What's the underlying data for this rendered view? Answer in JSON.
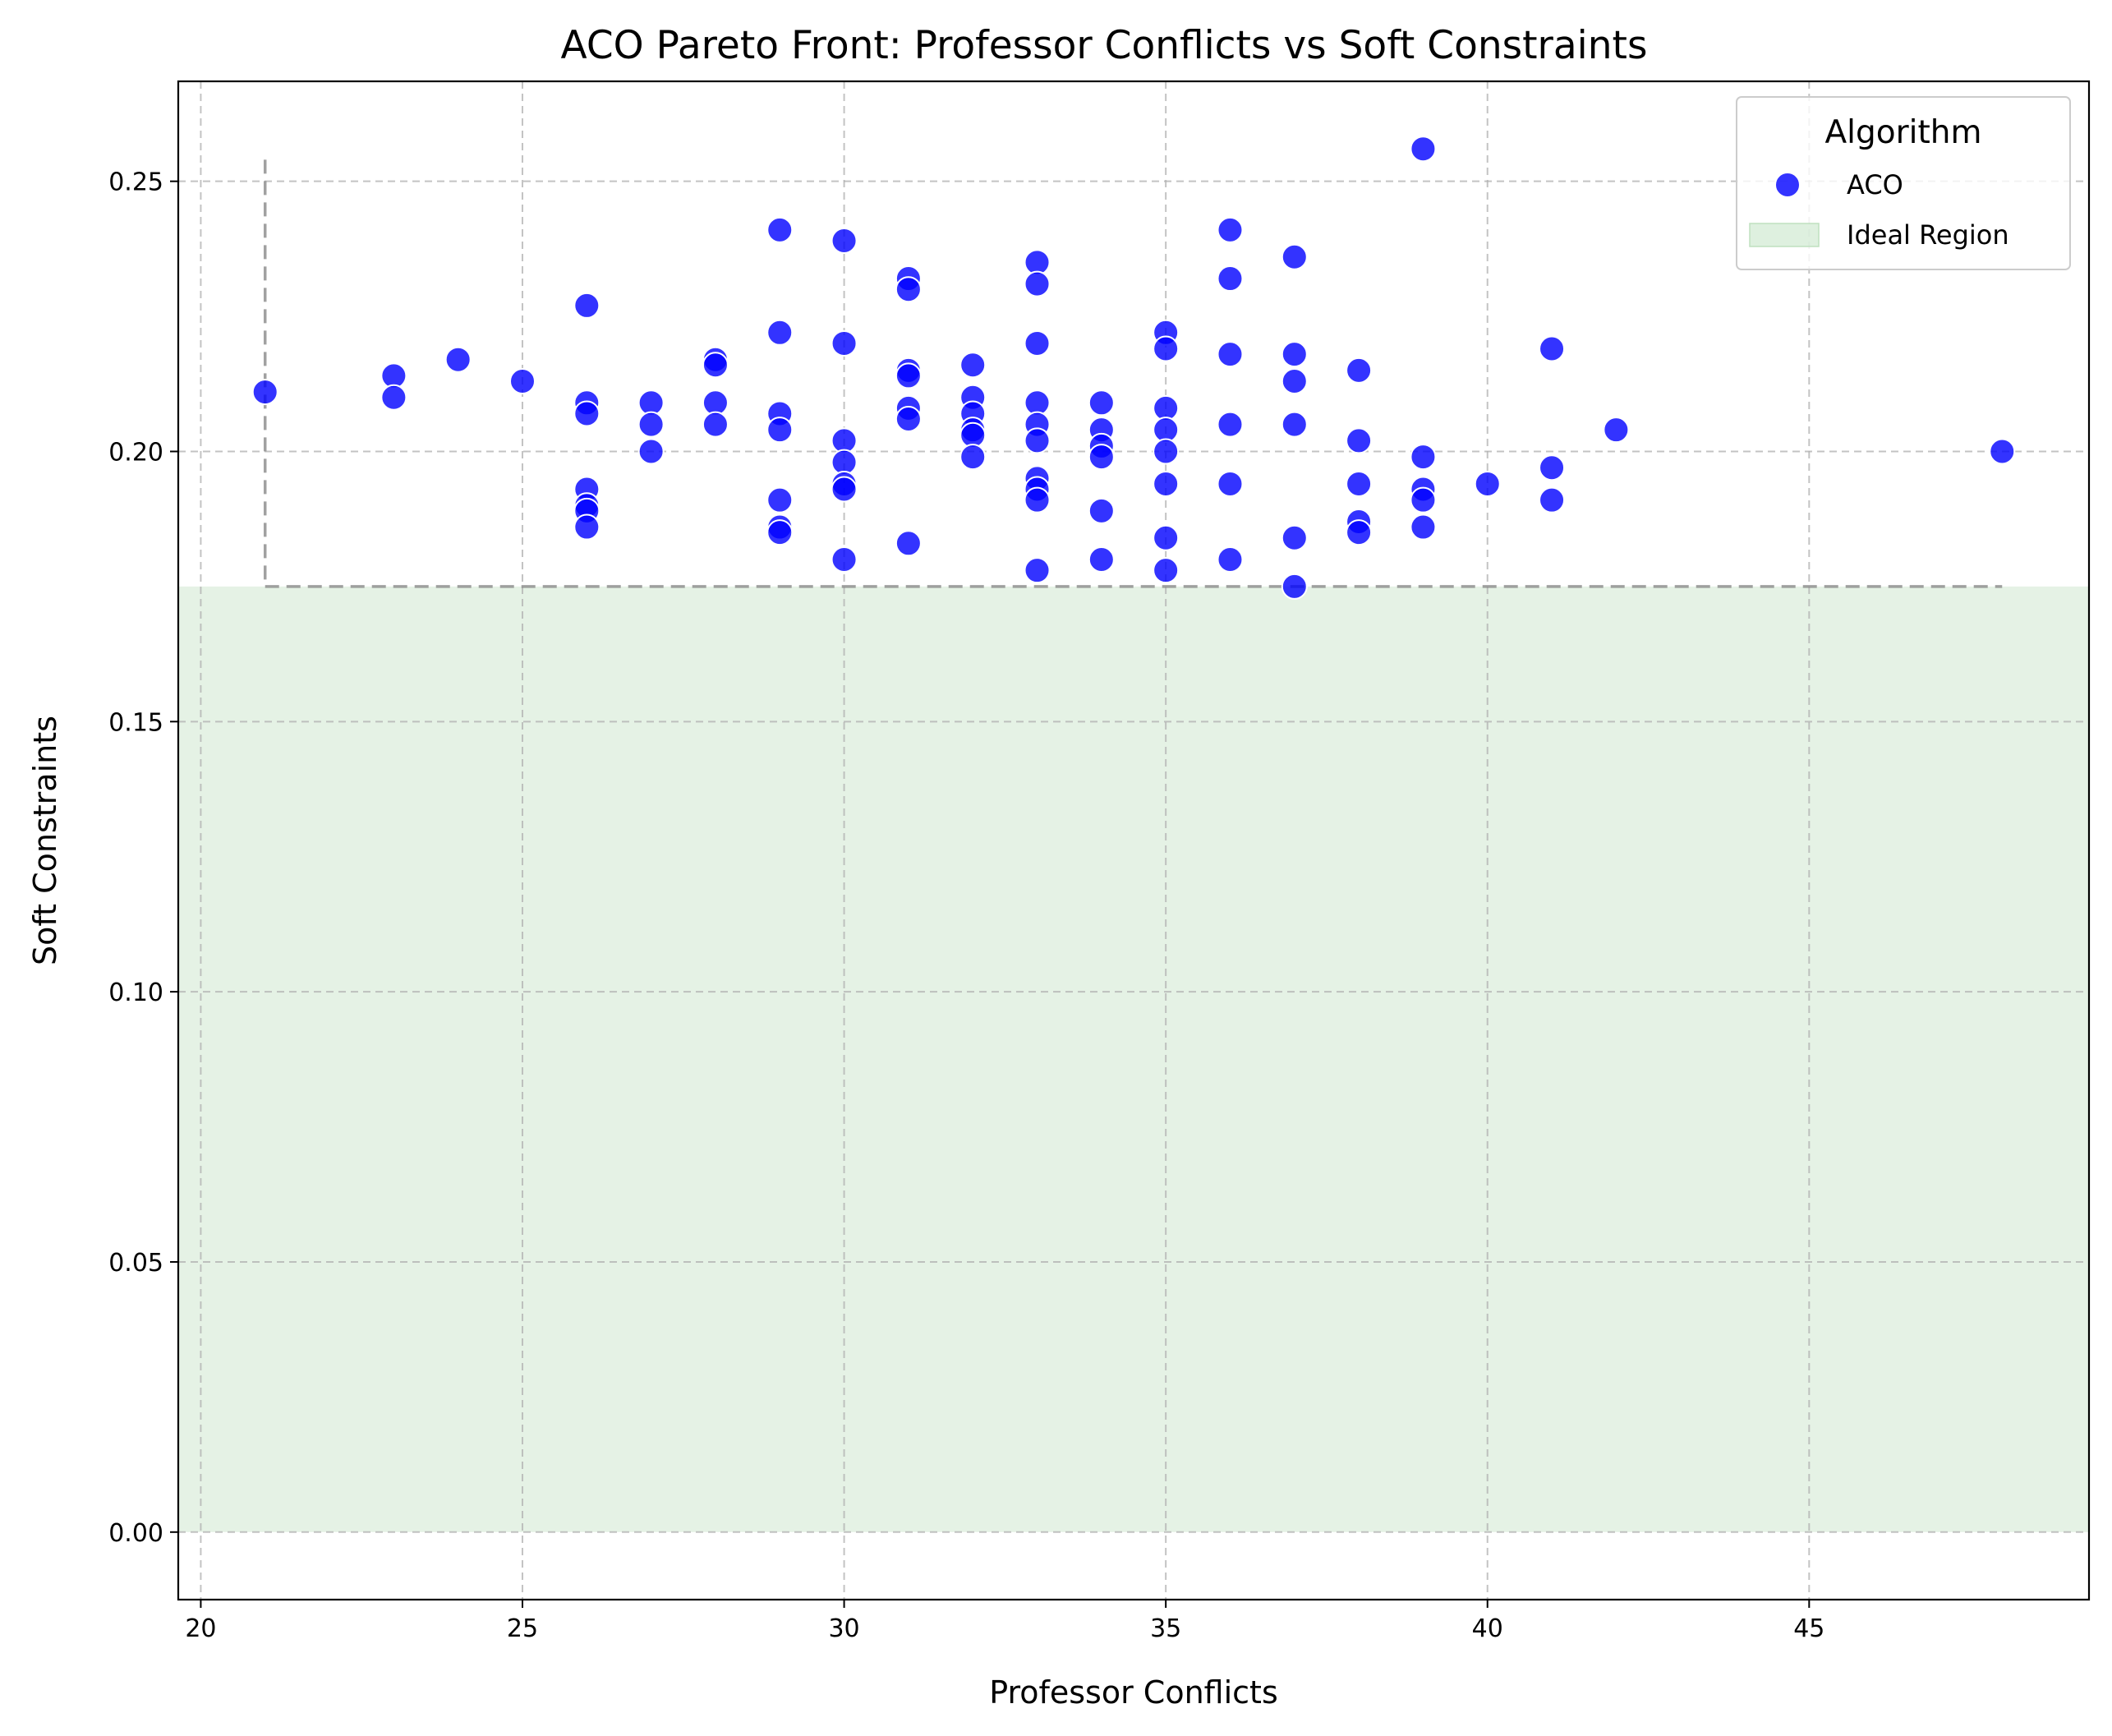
{
  "chart_data": {
    "type": "scatter",
    "title": "ACO Pareto Front: Professor Conflicts vs Soft Constraints",
    "xlabel": "Professor Conflicts",
    "ylabel": "Soft Constraints",
    "xlim": [
      19.65,
      49.35
    ],
    "ylim": [
      -0.0125,
      0.2685
    ],
    "xticks": [
      20,
      25,
      30,
      35,
      40,
      45
    ],
    "yticks": [
      0.0,
      0.05,
      0.1,
      0.15,
      0.2,
      0.25
    ],
    "xtick_labels": [
      "20",
      "25",
      "30",
      "35",
      "40",
      "45"
    ],
    "ytick_labels": [
      "0.00",
      "0.05",
      "0.10",
      "0.15",
      "0.20",
      "0.25"
    ],
    "grid": true,
    "legend": {
      "title": "Algorithm",
      "placement": "top-right",
      "entries": [
        {
          "label": "ACO",
          "kind": "marker",
          "color": "#0000ff"
        },
        {
          "label": "Ideal Region",
          "kind": "patch",
          "color": "#c8e6c9"
        }
      ]
    },
    "ideal_region": {
      "label": "Ideal Region",
      "x": [
        19.65,
        49.35
      ],
      "y": [
        0.0,
        0.175
      ],
      "color": "#e5f2e5"
    },
    "pareto_outline": {
      "vertical_x": 21,
      "vertical_y": [
        0.175,
        0.254
      ],
      "horizontal_y": 0.175,
      "horizontal_x": [
        21,
        48
      ],
      "color": "#8a8a8a"
    },
    "series": [
      {
        "name": "ACO",
        "color": "#0000ff",
        "points": [
          [
            21,
            0.211
          ],
          [
            23,
            0.214
          ],
          [
            23,
            0.21
          ],
          [
            24,
            0.217
          ],
          [
            25,
            0.213
          ],
          [
            26,
            0.227
          ],
          [
            26,
            0.209
          ],
          [
            26,
            0.207
          ],
          [
            26,
            0.193
          ],
          [
            26,
            0.19
          ],
          [
            26,
            0.189
          ],
          [
            26,
            0.186
          ],
          [
            27,
            0.209
          ],
          [
            27,
            0.205
          ],
          [
            27,
            0.2
          ],
          [
            28,
            0.217
          ],
          [
            28,
            0.216
          ],
          [
            28,
            0.209
          ],
          [
            28,
            0.205
          ],
          [
            29,
            0.241
          ],
          [
            29,
            0.222
          ],
          [
            29,
            0.207
          ],
          [
            29,
            0.204
          ],
          [
            29,
            0.191
          ],
          [
            29,
            0.186
          ],
          [
            29,
            0.185
          ],
          [
            30,
            0.239
          ],
          [
            30,
            0.22
          ],
          [
            30,
            0.202
          ],
          [
            30,
            0.198
          ],
          [
            30,
            0.194
          ],
          [
            30,
            0.193
          ],
          [
            30,
            0.18
          ],
          [
            31,
            0.232
          ],
          [
            31,
            0.23
          ],
          [
            31,
            0.215
          ],
          [
            31,
            0.214
          ],
          [
            31,
            0.208
          ],
          [
            31,
            0.206
          ],
          [
            31,
            0.183
          ],
          [
            32,
            0.216
          ],
          [
            32,
            0.21
          ],
          [
            32,
            0.207
          ],
          [
            32,
            0.204
          ],
          [
            32,
            0.203
          ],
          [
            32,
            0.199
          ],
          [
            33,
            0.235
          ],
          [
            33,
            0.231
          ],
          [
            33,
            0.22
          ],
          [
            33,
            0.209
          ],
          [
            33,
            0.205
          ],
          [
            33,
            0.202
          ],
          [
            33,
            0.195
          ],
          [
            33,
            0.193
          ],
          [
            33,
            0.191
          ],
          [
            33,
            0.178
          ],
          [
            34,
            0.209
          ],
          [
            34,
            0.204
          ],
          [
            34,
            0.201
          ],
          [
            34,
            0.199
          ],
          [
            34,
            0.189
          ],
          [
            34,
            0.18
          ],
          [
            35,
            0.222
          ],
          [
            35,
            0.219
          ],
          [
            35,
            0.208
          ],
          [
            35,
            0.204
          ],
          [
            35,
            0.2
          ],
          [
            35,
            0.194
          ],
          [
            35,
            0.184
          ],
          [
            35,
            0.178
          ],
          [
            36,
            0.241
          ],
          [
            36,
            0.232
          ],
          [
            36,
            0.218
          ],
          [
            36,
            0.205
          ],
          [
            36,
            0.194
          ],
          [
            36,
            0.18
          ],
          [
            37,
            0.236
          ],
          [
            37,
            0.218
          ],
          [
            37,
            0.213
          ],
          [
            37,
            0.205
          ],
          [
            37,
            0.184
          ],
          [
            37,
            0.175
          ],
          [
            38,
            0.215
          ],
          [
            38,
            0.202
          ],
          [
            38,
            0.194
          ],
          [
            38,
            0.187
          ],
          [
            38,
            0.185
          ],
          [
            39,
            0.256
          ],
          [
            39,
            0.199
          ],
          [
            39,
            0.193
          ],
          [
            39,
            0.191
          ],
          [
            39,
            0.186
          ],
          [
            40,
            0.194
          ],
          [
            41,
            0.219
          ],
          [
            41,
            0.197
          ],
          [
            41,
            0.191
          ],
          [
            42,
            0.204
          ],
          [
            48,
            0.2
          ]
        ]
      }
    ]
  }
}
